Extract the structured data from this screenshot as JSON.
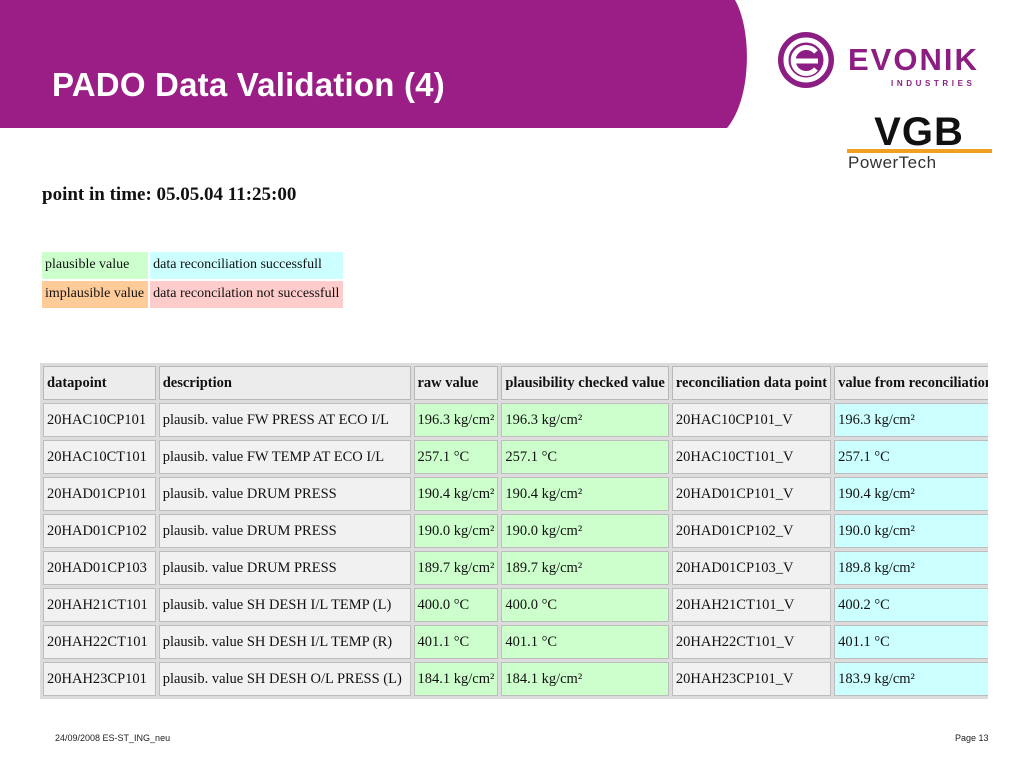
{
  "slide": {
    "title": "PADO Data Validation (4)",
    "banner_color": "#9b1d86"
  },
  "logos": {
    "evonik": {
      "word": "EVONIK",
      "sub": "INDUSTRIES",
      "color": "#8c1d82"
    },
    "vgb": {
      "word": "VGB",
      "sub": "PowerTech"
    }
  },
  "screenshot": {
    "point_in_time": "point in time: 05.05.04 11:25:00",
    "legend": [
      {
        "label": "plausible value",
        "label_color": "#ccffcc",
        "desc": "data reconciliation successfull",
        "desc_color": "#ccffff"
      },
      {
        "label": "implausible value",
        "label_color": "#ffcc99",
        "desc": "data reconcilation not successfull",
        "desc_color": "#ffcccc"
      }
    ],
    "columns": [
      "datapoint",
      "description",
      "raw value",
      "plausibility checked value",
      "reconciliation data point",
      "value from reconciliation"
    ],
    "rows": [
      {
        "datapoint": "20HAC10CP101",
        "description": "plausib. value FW PRESS AT ECO I/L",
        "raw": "196.3 kg/cm²",
        "plausibility": "196.3 kg/cm²",
        "recon_point": "20HAC10CP101_V",
        "recon_value": "196.3 kg/cm²"
      },
      {
        "datapoint": "20HAC10CT101",
        "description": "plausib. value FW TEMP AT ECO I/L",
        "raw": "257.1 °C",
        "plausibility": "257.1 °C",
        "recon_point": "20HAC10CT101_V",
        "recon_value": "257.1 °C"
      },
      {
        "datapoint": "20HAD01CP101",
        "description": "plausib. value DRUM PRESS",
        "raw": "190.4 kg/cm²",
        "plausibility": "190.4 kg/cm²",
        "recon_point": "20HAD01CP101_V",
        "recon_value": "190.4 kg/cm²"
      },
      {
        "datapoint": "20HAD01CP102",
        "description": "plausib. value DRUM PRESS",
        "raw": "190.0 kg/cm²",
        "plausibility": "190.0 kg/cm²",
        "recon_point": "20HAD01CP102_V",
        "recon_value": "190.0 kg/cm²"
      },
      {
        "datapoint": "20HAD01CP103",
        "description": "plausib. value DRUM PRESS",
        "raw": "189.7 kg/cm²",
        "plausibility": "189.7 kg/cm²",
        "recon_point": "20HAD01CP103_V",
        "recon_value": "189.8 kg/cm²"
      },
      {
        "datapoint": "20HAH21CT101",
        "description": "plausib. value SH DESH I/L TEMP (L)",
        "raw": "400.0 °C",
        "plausibility": "400.0 °C",
        "recon_point": "20HAH21CT101_V",
        "recon_value": "400.2 °C"
      },
      {
        "datapoint": "20HAH22CT101",
        "description": "plausib. value SH DESH I/L TEMP (R)",
        "raw": "401.1 °C",
        "plausibility": "401.1 °C",
        "recon_point": "20HAH22CT101_V",
        "recon_value": "401.1 °C"
      },
      {
        "datapoint": "20HAH23CP101",
        "description": "plausib. value SH DESH O/L PRESS (L)",
        "raw": "184.1 kg/cm²",
        "plausibility": "184.1 kg/cm²",
        "recon_point": "20HAH23CP101_V",
        "recon_value": "183.9 kg/cm²"
      }
    ]
  },
  "footer": {
    "left": "24/09/2008 ES-ST_ING_neu",
    "right": "Page 13"
  }
}
